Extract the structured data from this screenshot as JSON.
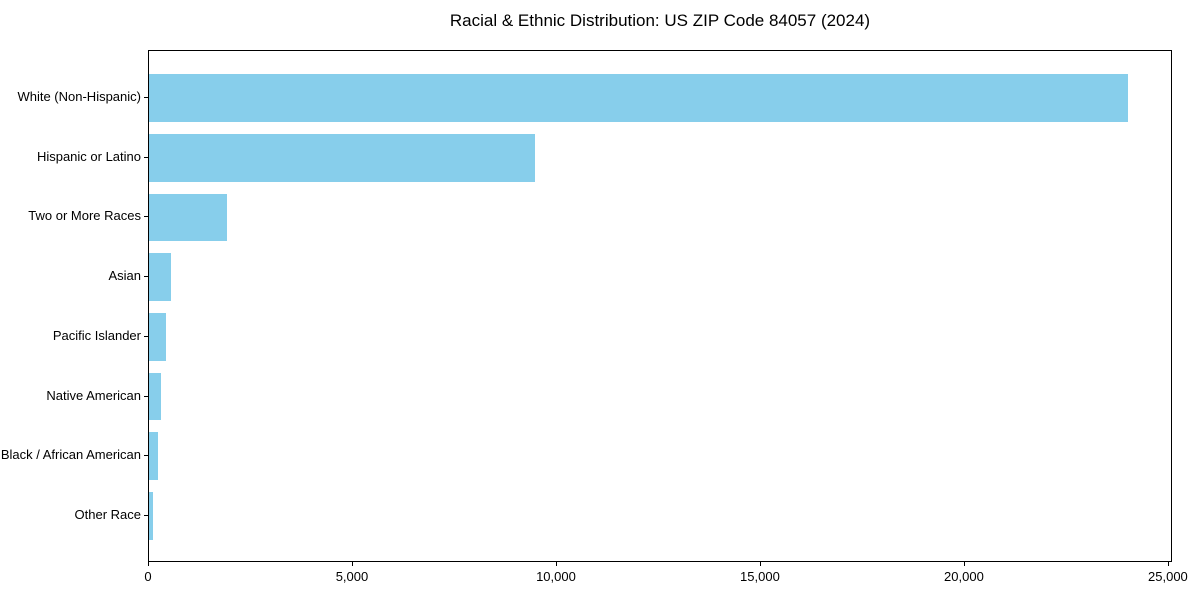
{
  "chart_data": {
    "type": "bar",
    "orientation": "horizontal",
    "title": "Racial & Ethnic Distribution: US ZIP Code 84057 (2024)",
    "categories": [
      "White (Non-Hispanic)",
      "Hispanic or Latino",
      "Two or More Races",
      "Asian",
      "Pacific Islander",
      "Native American",
      "Black / African American",
      "Other Race"
    ],
    "values": [
      24000,
      9450,
      1900,
      550,
      425,
      300,
      225,
      100
    ],
    "xlabel": "",
    "ylabel": "",
    "xlim": [
      0,
      25100
    ],
    "x_ticks": [
      0,
      5000,
      10000,
      15000,
      20000,
      25000
    ],
    "x_tick_labels": [
      "0",
      "5,000",
      "10,000",
      "15,000",
      "20,000",
      "25,000"
    ],
    "bar_color": "#87CEEB",
    "axis_color": "#000000",
    "text_color": "#000000",
    "grid": false,
    "legend_position": "none"
  }
}
